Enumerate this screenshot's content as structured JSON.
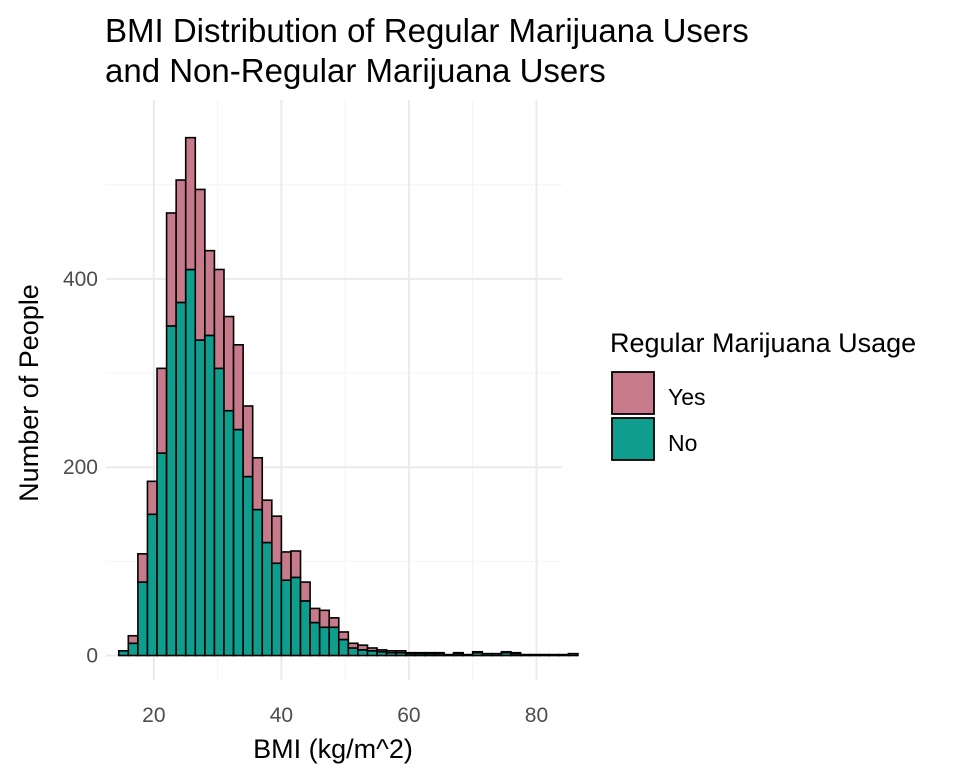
{
  "chart_data": {
    "type": "bar",
    "stacked": true,
    "histogram": true,
    "title_lines": [
      "BMI Distribution of Regular Marijuana Users",
      "and Non-Regular Marijuana Users"
    ],
    "xlabel": "BMI (kg/m^2)",
    "ylabel": "Number of People",
    "xlim": [
      12.5,
      84
    ],
    "ylim": [
      -26,
      590
    ],
    "x_ticks": [
      20,
      40,
      60,
      80
    ],
    "y_ticks": [
      0,
      200,
      400
    ],
    "bin_width": 1.5,
    "bin_start": 14.5,
    "grid": true,
    "legend": {
      "title": "Regular Marijuana Usage",
      "position": "right"
    },
    "series": [
      {
        "name": "Yes",
        "color": "#c77b8a",
        "values": [
          0,
          8,
          30,
          35,
          90,
          120,
          130,
          140,
          160,
          90,
          105,
          100,
          90,
          75,
          55,
          45,
          50,
          30,
          28,
          20,
          15,
          18,
          10,
          8,
          5,
          5,
          3,
          2,
          2,
          2,
          1,
          1,
          1,
          1,
          0,
          1,
          0,
          1,
          0,
          0,
          1,
          1,
          0,
          0,
          0,
          0,
          0,
          0
        ]
      },
      {
        "name": "No",
        "color": "#0f9e8e",
        "values": [
          5,
          13,
          78,
          150,
          215,
          350,
          375,
          410,
          335,
          340,
          305,
          260,
          240,
          190,
          155,
          120,
          98,
          80,
          83,
          58,
          35,
          30,
          30,
          17,
          8,
          6,
          5,
          4,
          3,
          3,
          2,
          2,
          2,
          2,
          1,
          2,
          1,
          3,
          2,
          2,
          3,
          2,
          1,
          1,
          1,
          1,
          1,
          2
        ]
      }
    ]
  }
}
